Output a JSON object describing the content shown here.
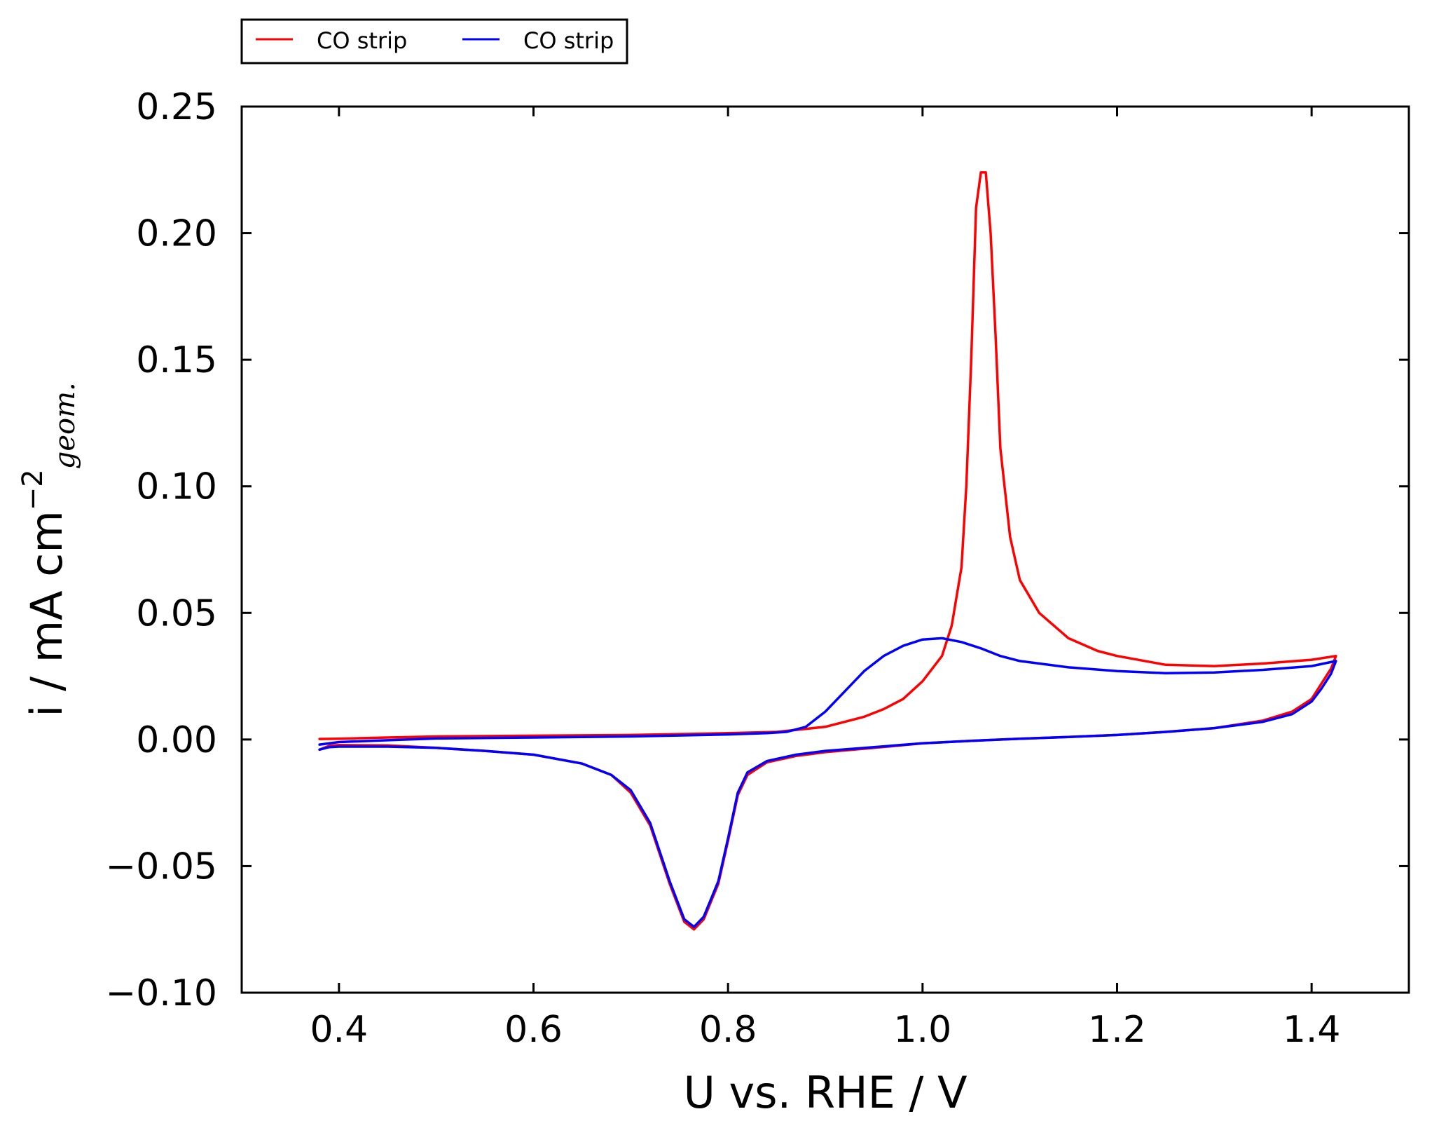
{
  "chart_data": {
    "type": "line",
    "title": "",
    "xlabel": "U vs. RHE / V",
    "ylabel": {
      "main": "i / mA cm",
      "sup": "−2",
      "sub": "geom."
    },
    "xlim": [
      0.3,
      1.5
    ],
    "ylim": [
      -0.1,
      0.25
    ],
    "x_ticks": [
      {
        "value": 0.4,
        "label": "0.4"
      },
      {
        "value": 0.6,
        "label": "0.6"
      },
      {
        "value": 0.8,
        "label": "0.8"
      },
      {
        "value": 1.0,
        "label": "1.0"
      },
      {
        "value": 1.2,
        "label": "1.2"
      },
      {
        "value": 1.4,
        "label": "1.4"
      }
    ],
    "y_ticks": [
      {
        "value": 0.25,
        "label": "0.25"
      },
      {
        "value": 0.2,
        "label": "0.20"
      },
      {
        "value": 0.15,
        "label": "0.15"
      },
      {
        "value": 0.1,
        "label": "0.10"
      },
      {
        "value": 0.05,
        "label": "0.05"
      },
      {
        "value": 0.0,
        "label": "0.00"
      },
      {
        "value": -0.05,
        "label": "−0.05"
      },
      {
        "value": -0.1,
        "label": "−0.10"
      }
    ],
    "grid": false,
    "legend_position": "top-left, above plot",
    "series": [
      {
        "name": "CO strip",
        "color": "#ff0000",
        "points": [
          [
            0.38,
            -0.004
          ],
          [
            0.39,
            -0.0025
          ],
          [
            0.4,
            -0.0022
          ],
          [
            0.45,
            -0.0023
          ],
          [
            0.5,
            -0.0033
          ],
          [
            0.55,
            -0.0045
          ],
          [
            0.6,
            -0.006
          ],
          [
            0.65,
            -0.0095
          ],
          [
            0.68,
            -0.014
          ],
          [
            0.7,
            -0.021
          ],
          [
            0.72,
            -0.034
          ],
          [
            0.74,
            -0.057
          ],
          [
            0.755,
            -0.072
          ],
          [
            0.765,
            -0.075
          ],
          [
            0.775,
            -0.071
          ],
          [
            0.79,
            -0.057
          ],
          [
            0.8,
            -0.04
          ],
          [
            0.81,
            -0.022
          ],
          [
            0.82,
            -0.014
          ],
          [
            0.84,
            -0.009
          ],
          [
            0.87,
            -0.0065
          ],
          [
            0.9,
            -0.005
          ],
          [
            0.95,
            -0.0033
          ],
          [
            1.0,
            -0.0015
          ],
          [
            1.05,
            -0.0005
          ],
          [
            1.1,
            0.0003
          ],
          [
            1.15,
            0.001
          ],
          [
            1.2,
            0.0018
          ],
          [
            1.25,
            0.003
          ],
          [
            1.3,
            0.0045
          ],
          [
            1.35,
            0.0075
          ],
          [
            1.38,
            0.011
          ],
          [
            1.4,
            0.016
          ],
          [
            1.41,
            0.022
          ],
          [
            1.42,
            0.028
          ],
          [
            1.425,
            0.033
          ],
          [
            1.4,
            0.0315
          ],
          [
            1.35,
            0.03
          ],
          [
            1.3,
            0.029
          ],
          [
            1.25,
            0.0295
          ],
          [
            1.2,
            0.033
          ],
          [
            1.18,
            0.035
          ],
          [
            1.15,
            0.04
          ],
          [
            1.12,
            0.05
          ],
          [
            1.1,
            0.063
          ],
          [
            1.09,
            0.08
          ],
          [
            1.08,
            0.115
          ],
          [
            1.075,
            0.16
          ],
          [
            1.07,
            0.2
          ],
          [
            1.065,
            0.224
          ],
          [
            1.06,
            0.224
          ],
          [
            1.055,
            0.21
          ],
          [
            1.05,
            0.15
          ],
          [
            1.045,
            0.1
          ],
          [
            1.04,
            0.068
          ],
          [
            1.03,
            0.045
          ],
          [
            1.02,
            0.033
          ],
          [
            1.0,
            0.023
          ],
          [
            0.98,
            0.016
          ],
          [
            0.96,
            0.012
          ],
          [
            0.94,
            0.009
          ],
          [
            0.9,
            0.005
          ],
          [
            0.85,
            0.003
          ],
          [
            0.8,
            0.0025
          ],
          [
            0.7,
            0.0018
          ],
          [
            0.6,
            0.0015
          ],
          [
            0.5,
            0.0012
          ],
          [
            0.45,
            0.0008
          ],
          [
            0.4,
            0.0003
          ],
          [
            0.38,
            0.0002
          ]
        ]
      },
      {
        "name": "CO strip",
        "color": "#0000ff",
        "points": [
          [
            0.38,
            -0.004
          ],
          [
            0.39,
            -0.003
          ],
          [
            0.4,
            -0.0028
          ],
          [
            0.45,
            -0.0028
          ],
          [
            0.5,
            -0.0033
          ],
          [
            0.55,
            -0.0045
          ],
          [
            0.6,
            -0.006
          ],
          [
            0.65,
            -0.0095
          ],
          [
            0.68,
            -0.014
          ],
          [
            0.7,
            -0.02
          ],
          [
            0.72,
            -0.033
          ],
          [
            0.74,
            -0.056
          ],
          [
            0.755,
            -0.071
          ],
          [
            0.765,
            -0.074
          ],
          [
            0.775,
            -0.07
          ],
          [
            0.79,
            -0.056
          ],
          [
            0.8,
            -0.039
          ],
          [
            0.81,
            -0.021
          ],
          [
            0.82,
            -0.013
          ],
          [
            0.84,
            -0.0085
          ],
          [
            0.87,
            -0.006
          ],
          [
            0.9,
            -0.0045
          ],
          [
            0.95,
            -0.003
          ],
          [
            1.0,
            -0.0015
          ],
          [
            1.05,
            -0.0005
          ],
          [
            1.1,
            0.0003
          ],
          [
            1.15,
            0.001
          ],
          [
            1.2,
            0.0018
          ],
          [
            1.25,
            0.003
          ],
          [
            1.3,
            0.0045
          ],
          [
            1.35,
            0.007
          ],
          [
            1.38,
            0.01
          ],
          [
            1.4,
            0.015
          ],
          [
            1.41,
            0.02
          ],
          [
            1.42,
            0.026
          ],
          [
            1.425,
            0.031
          ],
          [
            1.4,
            0.029
          ],
          [
            1.35,
            0.0275
          ],
          [
            1.3,
            0.0265
          ],
          [
            1.25,
            0.0262
          ],
          [
            1.2,
            0.027
          ],
          [
            1.15,
            0.0285
          ],
          [
            1.1,
            0.031
          ],
          [
            1.08,
            0.033
          ],
          [
            1.06,
            0.036
          ],
          [
            1.04,
            0.0385
          ],
          [
            1.02,
            0.04
          ],
          [
            1.0,
            0.0395
          ],
          [
            0.98,
            0.037
          ],
          [
            0.96,
            0.033
          ],
          [
            0.94,
            0.027
          ],
          [
            0.92,
            0.019
          ],
          [
            0.9,
            0.011
          ],
          [
            0.88,
            0.005
          ],
          [
            0.86,
            0.003
          ],
          [
            0.84,
            0.0025
          ],
          [
            0.8,
            0.002
          ],
          [
            0.7,
            0.0012
          ],
          [
            0.6,
            0.0008
          ],
          [
            0.5,
            0.0004
          ],
          [
            0.45,
            -0.0003
          ],
          [
            0.4,
            -0.001
          ],
          [
            0.38,
            -0.002
          ]
        ]
      }
    ]
  }
}
